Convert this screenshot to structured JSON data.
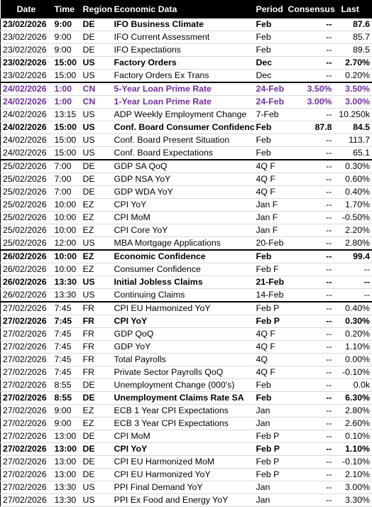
{
  "table": {
    "header": [
      "Date",
      "Time",
      "Region",
      "Economic Data",
      "Period",
      "Consensus",
      "Last"
    ],
    "rows": [
      {
        "cells": [
          "23/02/2026",
          "9:00",
          "DE",
          "IFO Business Climate",
          "Feb",
          "--",
          "87.6"
        ],
        "bold": true
      },
      {
        "cells": [
          "23/02/2026",
          "9:00",
          "DE",
          "IFO Current Assessment",
          "Feb",
          "--",
          "85.7"
        ]
      },
      {
        "cells": [
          "23/02/2026",
          "9:00",
          "DE",
          "IFO Expectations",
          "Feb",
          "--",
          "89.5"
        ]
      },
      {
        "cells": [
          "23/02/2026",
          "15:00",
          "US",
          "Factory Orders",
          "Dec",
          "--",
          "2.70%"
        ],
        "bold": true
      },
      {
        "cells": [
          "23/02/2026",
          "15:00",
          "US",
          "Factory Orders Ex Trans",
          "Dec",
          "--",
          "0.20%"
        ]
      },
      {
        "cells": [
          "24/02/2026",
          "1:00",
          "CN",
          "5-Year Loan Prime Rate",
          "24-Feb",
          "3.50%",
          "3.50%"
        ],
        "bold": true,
        "color": "#7030a0"
      },
      {
        "cells": [
          "24/02/2026",
          "1:00",
          "CN",
          "1-Year Loan Prime Rate",
          "24-Feb",
          "3.00%",
          "3.00%"
        ],
        "bold": true,
        "color": "#7030a0"
      },
      {
        "cells": [
          "24/02/2026",
          "13:15",
          "US",
          "ADP Weekly Employment Change",
          "7-Feb",
          "--",
          "10.250k"
        ]
      },
      {
        "cells": [
          "24/02/2026",
          "15:00",
          "US",
          "Conf. Board Consumer Confidence",
          "Feb",
          "87.8",
          "84.5"
        ],
        "bold": true
      },
      {
        "cells": [
          "24/02/2026",
          "15:00",
          "US",
          "Conf. Board Present Situation",
          "Feb",
          "--",
          "113.7"
        ]
      },
      {
        "cells": [
          "24/02/2026",
          "15:00",
          "US",
          "Conf. Board Expectations",
          "Feb",
          "--",
          "65.1"
        ]
      },
      {
        "cells": [
          "25/02/2026",
          "7:00",
          "DE",
          "GDP SA QoQ",
          "4Q F",
          "--",
          "0.30%"
        ]
      },
      {
        "cells": [
          "25/02/2026",
          "7:00",
          "DE",
          "GDP NSA YoY",
          "4Q F",
          "--",
          "0.60%"
        ]
      },
      {
        "cells": [
          "25/02/2026",
          "7:00",
          "DE",
          "GDP WDA YoY",
          "4Q F",
          "--",
          "0.40%"
        ]
      },
      {
        "cells": [
          "25/02/2026",
          "10:00",
          "EZ",
          "CPI YoY",
          "Jan F",
          "--",
          "1.70%"
        ]
      },
      {
        "cells": [
          "25/02/2026",
          "10:00",
          "EZ",
          "CPI MoM",
          "Jan F",
          "--",
          "-0.50%"
        ]
      },
      {
        "cells": [
          "25/02/2026",
          "10:00",
          "EZ",
          "CPI Core YoY",
          "Jan F",
          "--",
          "2.20%"
        ]
      },
      {
        "cells": [
          "25/02/2026",
          "12:00",
          "US",
          "MBA Mortgage Applications",
          "20-Feb",
          "--",
          "2.80%"
        ]
      },
      {
        "cells": [
          "26/02/2026",
          "10:00",
          "EZ",
          "Economic Confidence",
          "Feb",
          "--",
          "99.4"
        ],
        "bold": true
      },
      {
        "cells": [
          "26/02/2026",
          "10:00",
          "EZ",
          "Consumer Confidence",
          "Feb F",
          "--",
          "--"
        ]
      },
      {
        "cells": [
          "26/02/2026",
          "13:30",
          "US",
          "Initial Jobless Claims",
          "21-Feb",
          "--",
          "--"
        ],
        "bold": true
      },
      {
        "cells": [
          "26/02/2026",
          "13:30",
          "US",
          "Continuing Claims",
          "14-Feb",
          "--",
          "--"
        ]
      },
      {
        "cells": [
          "27/02/2026",
          "7:45",
          "FR",
          "CPI EU Harmonized YoY",
          "Feb P",
          "--",
          "0.40%"
        ]
      },
      {
        "cells": [
          "27/02/2026",
          "7:45",
          "FR",
          "CPI YoY",
          "Feb P",
          "--",
          "0.30%"
        ],
        "bold": true
      },
      {
        "cells": [
          "27/02/2026",
          "7:45",
          "FR",
          "GDP QoQ",
          "4Q F",
          "--",
          "0.20%"
        ]
      },
      {
        "cells": [
          "27/02/2026",
          "7:45",
          "FR",
          "GDP YoY",
          "4Q F",
          "--",
          "1.10%"
        ]
      },
      {
        "cells": [
          "27/02/2026",
          "7:45",
          "FR",
          "Total Payrolls",
          "4Q",
          "--",
          "0.00%"
        ]
      },
      {
        "cells": [
          "27/02/2026",
          "7:45",
          "FR",
          "Private Sector Payrolls QoQ",
          "4Q F",
          "--",
          "-0.10%"
        ]
      },
      {
        "cells": [
          "27/02/2026",
          "8:55",
          "DE",
          "Unemployment Change (000's)",
          "Feb",
          "--",
          "0.0k"
        ]
      },
      {
        "cells": [
          "27/02/2026",
          "8:55",
          "DE",
          "Unemployment Claims Rate SA",
          "Feb",
          "--",
          "6.30%"
        ],
        "bold": true
      },
      {
        "cells": [
          "27/02/2026",
          "9:00",
          "EZ",
          "ECB 1 Year CPI Expectations",
          "Jan",
          "--",
          "2.80%"
        ]
      },
      {
        "cells": [
          "27/02/2026",
          "9:00",
          "EZ",
          "ECB 3 Year CPI Expectations",
          "Jan",
          "--",
          "2.60%"
        ]
      },
      {
        "cells": [
          "27/02/2026",
          "13:00",
          "DE",
          "CPI MoM",
          "Feb P",
          "--",
          "0.10%"
        ]
      },
      {
        "cells": [
          "27/02/2026",
          "13:00",
          "DE",
          "CPI YoY",
          "Feb P",
          "--",
          "1.10%"
        ],
        "bold": true
      },
      {
        "cells": [
          "27/02/2026",
          "13:00",
          "DE",
          "CPI EU Harmonized MoM",
          "Feb P",
          "--",
          "-0.10%"
        ]
      },
      {
        "cells": [
          "27/02/2026",
          "13:00",
          "DE",
          "CPI EU Harmonized YoY",
          "Feb P",
          "--",
          "2.10%"
        ]
      },
      {
        "cells": [
          "27/02/2026",
          "13:30",
          "US",
          "PPI Final Demand YoY",
          "Jan",
          "--",
          "3.00%"
        ]
      },
      {
        "cells": [
          "27/02/2026",
          "13:30",
          "US",
          "PPI Ex Food and Energy YoY",
          "Jan",
          "--",
          "3.30%"
        ]
      }
    ]
  }
}
